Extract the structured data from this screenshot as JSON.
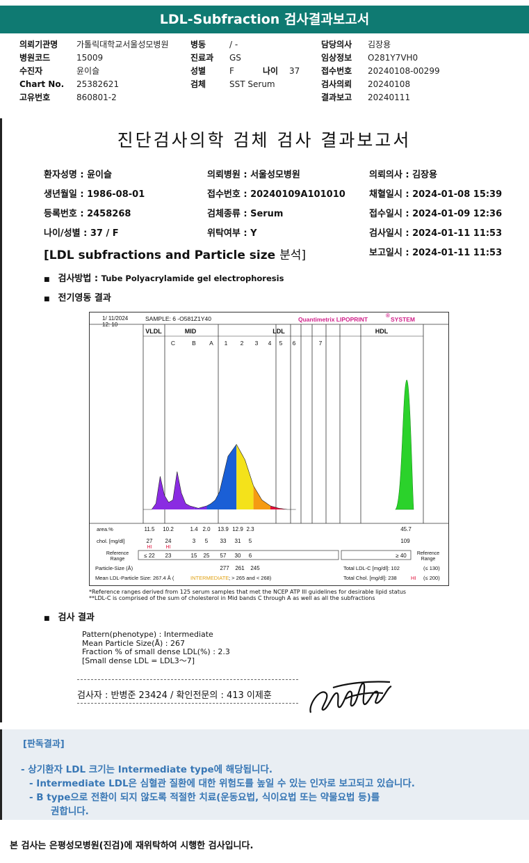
{
  "title": "LDL-Subfraction 검사결과보고서",
  "header": {
    "col1": [
      {
        "label": "의뢰기관명",
        "value": "가톨릭대학교서울성모병원"
      },
      {
        "label": "병원코드",
        "value": "15009"
      },
      {
        "label": "수진자",
        "value": "윤이슬"
      },
      {
        "label": "Chart No.",
        "value": "25382621"
      },
      {
        "label": "고유번호",
        "value": "860801-2"
      }
    ],
    "col2": [
      {
        "label": "병동",
        "value": "/ -"
      },
      {
        "label": "진료과",
        "value": "GS"
      },
      {
        "label": "성별",
        "value": "F"
      },
      {
        "label": "검체",
        "value": "SST Serum"
      }
    ],
    "age_label": "나이",
    "age_value": "37",
    "col3": [
      {
        "label": "담당의사",
        "value": "김장용"
      },
      {
        "label": "임상정보",
        "value": "O281Y7VH0"
      },
      {
        "label": "접수번호",
        "value": "20240108-00299"
      },
      {
        "label": "검사의뢰",
        "value": "20240108"
      },
      {
        "label": "결과보고",
        "value": "20240111"
      }
    ]
  },
  "report": {
    "heading": "진단검사의학 검체 검사 결과보고서",
    "rows": [
      [
        "환자성명 : 윤이슬",
        "의뢰병원 : 서울성모병원",
        "의뢰의사 : 김장용"
      ],
      [
        "생년월일 : 1986-08-01",
        "접수번호 : 20240109A101010",
        "채혈일시 : 2024-01-08 15:39"
      ],
      [
        "등록번호 : 2458268",
        "검체종류 : Serum",
        "접수일시 : 2024-01-09 12:36"
      ],
      [
        "나이/성별 : 37 / F",
        "위탁여부 : Y",
        "검사일시 : 2024-01-11 11:53"
      ]
    ],
    "section_title_en": "[LDL subfractions and Particle size ",
    "section_title_ko": "분석]",
    "report_time": "보고일시 : 2024-01-11 11:53",
    "method_label": "검사방법 : ",
    "method_value": "Tube Polyacrylamide gel electrophoresis",
    "electro_label": "전기영동 결과",
    "result_label": "검사 결과"
  },
  "chart_data": {
    "type": "area",
    "date": "1/ 11/2024",
    "time": "12: 10",
    "sample": "SAMPLE:   6 -O581Z1Y40",
    "brand": "Quantimetrix LIPOPRINT",
    "brand_reg": "®",
    "brand_tail": " SYSTEM",
    "band_groups": [
      "VLDL",
      "MID",
      "LDL",
      "HDL"
    ],
    "bands": [
      "C",
      "B",
      "A",
      "1",
      "2",
      "3",
      "4",
      "5",
      "6",
      "7"
    ],
    "area_label": "area.%",
    "area_values": [
      "11.5",
      "10.2",
      "1.4",
      "2.0",
      "13.9",
      "12.9",
      "2.3",
      "45.7"
    ],
    "chol_label": "chol. [mg/dl]",
    "chol_values": [
      "27",
      "24",
      "3",
      "5",
      "33",
      "31",
      "5",
      "109"
    ],
    "hi_flag": "HI",
    "ref_label1": "Reference",
    "ref_label2": "Range",
    "ref_values": [
      "≤ 22",
      "23",
      "15",
      "25",
      "57",
      "30",
      "6"
    ],
    "hdl_ref": "≥ 40",
    "particle_label": "Particle-Size (Å)",
    "particle_values": [
      "277",
      "261",
      "245"
    ],
    "total_ldl": "Total LDL-C [mg/dl]: 102",
    "total_ldl_ref": "(≤ 130)",
    "mean_label": "Mean LDL-Particle Size:   267.4 Å  (",
    "mean_flag": "INTERMEDIATE",
    "mean_tail": "; > 265 and < 268)",
    "total_chol": "Total Chol. [mg/dl]:  238",
    "total_chol_flag": "HI",
    "total_chol_ref": "(≤ 200)",
    "footnote1": "*Reference ranges derived from 125 serum samples that met the NCEP ATP III guidelines for desirable lipid status",
    "footnote2": "**LDL-C is comprised of the sum of cholesterol in Mid bands C through A as well as all the subfractions",
    "series": [
      {
        "x": [
          0,
          4,
          6,
          8,
          10,
          12,
          14,
          16,
          18,
          20,
          22,
          24,
          26,
          28,
          30,
          32,
          34,
          36,
          38,
          40,
          44,
          48,
          52,
          56,
          60,
          64,
          68,
          72,
          76,
          80,
          84,
          88,
          92,
          96,
          100
        ],
        "y": [
          0,
          0,
          5,
          28,
          12,
          6,
          8,
          32,
          14,
          5,
          3,
          2,
          1,
          2,
          3,
          5,
          8,
          15,
          30,
          45,
          55,
          42,
          20,
          8,
          3,
          1,
          0,
          0,
          0,
          0,
          0,
          0,
          0,
          0,
          0
        ]
      }
    ],
    "hdl_peak": 100,
    "colors": {
      "vldl": "#8a2be2",
      "mid": "#7b2be8",
      "mid_blue": "#1a5fd6",
      "ldl1": "#f4e21a",
      "ldl2": "#f59b13",
      "ldl3": "#e0103a",
      "hdl": "#2bd22b"
    }
  },
  "result": {
    "lines": [
      "Pattern(phenotype) : Intermediate",
      "Mean Particle Size(Å) : 267",
      "Fraction % of small dense LDL(%) : 2.3",
      "[Small dense LDL = LDL3～7]"
    ],
    "examiner": "검사자 : 반병준  23424  /  확인전문의 : 413  이제훈"
  },
  "verdict": {
    "title": "[판독결과]",
    "lines": [
      "-  상기환자 LDL 크기는 Intermediate type에 해당됩니다.",
      "-  Intermediate LDL은 심혈관 질환에 대한 위험도를 높일 수 있는 인자로 보고되고 있습니다.",
      "-  B type으로 전환이 되지 않도록 적절한 치료(운동요법, 식이요법 또는 약물요법 등)를",
      "권합니다."
    ]
  },
  "footer": "본 검사는 은평성모병원(진검)에 재위탁하여 시행한 검사입니다."
}
